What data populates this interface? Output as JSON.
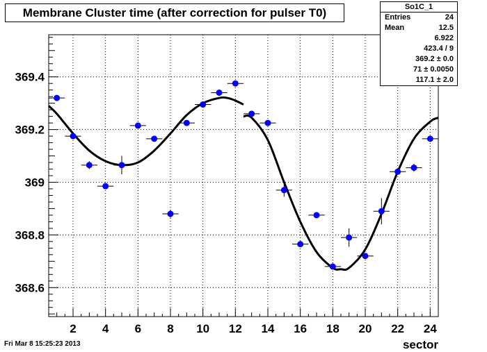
{
  "title": "Membrane Cluster time (after correction for pulser T0)",
  "stats": {
    "name": "So1C_1",
    "rows": [
      {
        "key": "Entries",
        "value": "24"
      },
      {
        "key": "Mean",
        "value": "12.5"
      },
      {
        "key": "",
        "value": "6.922"
      },
      {
        "key": "",
        "value": "423.4 / 9"
      },
      {
        "key": "",
        "value": "369.2 ± 0.0"
      },
      {
        "key": "",
        "value": "71 ± 0.0050"
      },
      {
        "key": "",
        "value": "117.1 ± 2.0"
      }
    ]
  },
  "footer_date": "Fri Mar  8 15:25:23 2013",
  "colors": {
    "marker": "#0000ff",
    "line": "#000000",
    "grid": "#000000"
  },
  "chart_data": {
    "type": "scatter",
    "title": "Membrane Cluster time (after correction for pulser T0)",
    "xlabel": "sector",
    "ylabel": "",
    "xlim": [
      0.5,
      24.5
    ],
    "ylim": [
      368.49,
      369.56
    ],
    "x_ticks": [
      2,
      4,
      6,
      8,
      10,
      12,
      14,
      16,
      18,
      20,
      22,
      24
    ],
    "y_ticks": [
      368.6,
      368.8,
      369,
      369.2,
      369.4
    ],
    "y_tick_labels": [
      "368.6",
      "368.8",
      "369",
      "369.2",
      "369.4"
    ],
    "grid": true,
    "points": [
      {
        "x": 1,
        "y": 369.32,
        "err": 0.008
      },
      {
        "x": 2,
        "y": 369.175,
        "err": 0.008
      },
      {
        "x": 3,
        "y": 369.065,
        "err": 0.015
      },
      {
        "x": 4,
        "y": 368.985,
        "err": 0.01
      },
      {
        "x": 5,
        "y": 369.065,
        "err": 0.035
      },
      {
        "x": 6,
        "y": 369.215,
        "err": 0.008
      },
      {
        "x": 7,
        "y": 369.165,
        "err": 0.008
      },
      {
        "x": 8,
        "y": 368.88,
        "err": 0.015
      },
      {
        "x": 9,
        "y": 369.225,
        "err": 0.008
      },
      {
        "x": 10,
        "y": 369.295,
        "err": 0.008
      },
      {
        "x": 11,
        "y": 369.34,
        "err": 0.008
      },
      {
        "x": 12,
        "y": 369.375,
        "err": 0.01
      },
      {
        "x": 13,
        "y": 369.26,
        "err": 0.008
      },
      {
        "x": 14,
        "y": 369.225,
        "err": 0.01
      },
      {
        "x": 15,
        "y": 368.97,
        "err": 0.025
      },
      {
        "x": 16,
        "y": 368.765,
        "err": 0.01
      },
      {
        "x": 17,
        "y": 368.875,
        "err": 0.01
      },
      {
        "x": 18,
        "y": 368.68,
        "err": 0.01
      },
      {
        "x": 19,
        "y": 368.79,
        "err": 0.035
      },
      {
        "x": 20,
        "y": 368.72,
        "err": 0.01
      },
      {
        "x": 21,
        "y": 368.89,
        "err": 0.05
      },
      {
        "x": 22,
        "y": 369.04,
        "err": 0.01
      },
      {
        "x": 23,
        "y": 369.055,
        "err": 0.015
      },
      {
        "x": 24,
        "y": 369.165,
        "err": 0.01
      }
    ],
    "fit_segments": [
      {
        "name": "",
        "x": [
          0.5,
          1,
          2,
          3,
          4,
          5,
          6,
          7,
          8,
          9,
          10,
          11,
          11.5,
          12,
          12.5
        ],
        "y": [
          369.29,
          369.26,
          369.185,
          369.12,
          369.08,
          369.065,
          369.075,
          369.12,
          369.185,
          369.255,
          369.3,
          369.32,
          369.32,
          369.31,
          369.295
        ]
      },
      {
        "name": "",
        "x": [
          12.5,
          13,
          14,
          15,
          16,
          17,
          18,
          18.5,
          19,
          20,
          21,
          22,
          23,
          24,
          24.5
        ],
        "y": [
          369.25,
          369.245,
          369.16,
          369.0,
          368.85,
          368.735,
          368.675,
          368.67,
          368.675,
          368.745,
          368.88,
          369.04,
          369.165,
          369.23,
          369.245
        ]
      }
    ]
  }
}
